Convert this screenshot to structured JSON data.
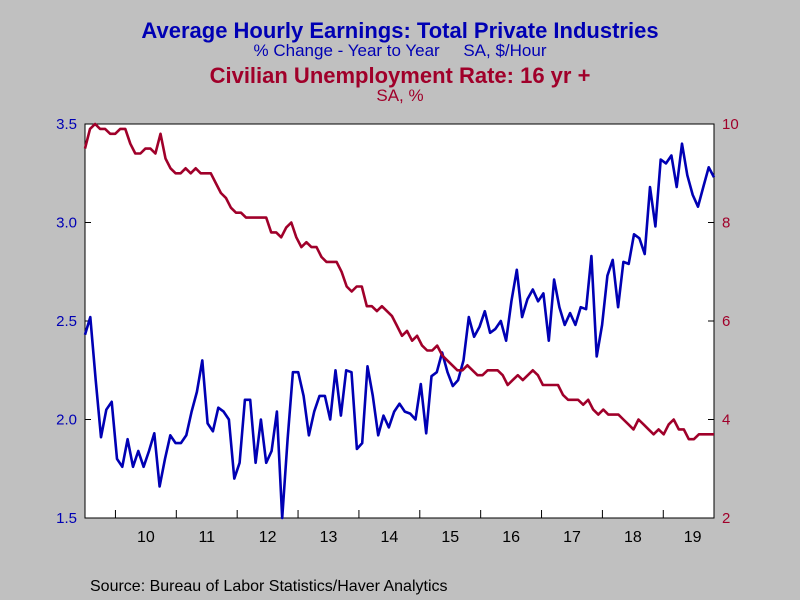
{
  "chart_data": {
    "type": "line",
    "title": "Average Hourly Earnings: Total Private Industries",
    "subtitle": "% Change - Year to Year     SA, $/Hour",
    "title2": "Civilian Unemployment Rate: 16 yr +",
    "subtitle2": "SA, %",
    "source": "Source:  Bureau of Labor Statistics/Haver Analytics",
    "x_tick_labels": [
      "10",
      "11",
      "12",
      "13",
      "14",
      "15",
      "16",
      "17",
      "18",
      "19"
    ],
    "x_start_year": 2009.5,
    "x_end_year": 2019.8333,
    "y_left": {
      "min": 1.5,
      "max": 3.5,
      "ticks": [
        "1.5",
        "2.0",
        "2.5",
        "3.0",
        "3.5"
      ],
      "color": "#0000b4"
    },
    "y_right": {
      "min": 2,
      "max": 10,
      "ticks": [
        "2",
        "4",
        "6",
        "8",
        "10"
      ],
      "color": "#a0002a"
    },
    "grid": false,
    "series": [
      {
        "name": "Average Hourly Earnings",
        "axis": "left",
        "color": "#0000b4",
        "values": [
          2.43,
          2.52,
          2.2,
          1.91,
          2.05,
          2.09,
          1.8,
          1.76,
          1.9,
          1.76,
          1.84,
          1.76,
          1.84,
          1.93,
          1.66,
          1.8,
          1.92,
          1.88,
          1.88,
          1.92,
          2.04,
          2.14,
          2.3,
          1.98,
          1.94,
          2.06,
          2.04,
          2.0,
          1.7,
          1.78,
          2.1,
          2.1,
          1.78,
          2.0,
          1.78,
          1.84,
          2.04,
          1.5,
          1.9,
          2.24,
          2.24,
          2.12,
          1.92,
          2.04,
          2.12,
          2.12,
          2.0,
          2.25,
          2.02,
          2.25,
          2.24,
          1.85,
          1.88,
          2.27,
          2.12,
          1.92,
          2.02,
          1.96,
          2.04,
          2.08,
          2.04,
          2.03,
          2.0,
          2.18,
          1.93,
          2.22,
          2.24,
          2.34,
          2.24,
          2.17,
          2.2,
          2.3,
          2.52,
          2.42,
          2.47,
          2.55,
          2.44,
          2.46,
          2.5,
          2.4,
          2.6,
          2.76,
          2.52,
          2.61,
          2.66,
          2.6,
          2.64,
          2.4,
          2.71,
          2.57,
          2.48,
          2.54,
          2.48,
          2.57,
          2.56,
          2.83,
          2.32,
          2.48,
          2.73,
          2.81,
          2.57,
          2.8,
          2.79,
          2.94,
          2.92,
          2.84,
          3.18,
          2.98,
          3.32,
          3.3,
          3.34,
          3.18,
          3.4,
          3.24,
          3.14,
          3.08,
          3.18,
          3.28,
          3.23
        ]
      },
      {
        "name": "Civilian Unemployment Rate",
        "axis": "right",
        "color": "#a0002a",
        "values": [
          9.5,
          9.9,
          10.0,
          9.9,
          9.9,
          9.8,
          9.8,
          9.9,
          9.9,
          9.6,
          9.4,
          9.4,
          9.5,
          9.5,
          9.4,
          9.8,
          9.3,
          9.1,
          9.0,
          9.0,
          9.1,
          9.0,
          9.1,
          9.0,
          9.0,
          9.0,
          8.8,
          8.6,
          8.5,
          8.3,
          8.2,
          8.2,
          8.1,
          8.1,
          8.1,
          8.1,
          8.1,
          7.8,
          7.8,
          7.7,
          7.9,
          8.0,
          7.7,
          7.5,
          7.6,
          7.5,
          7.5,
          7.3,
          7.2,
          7.2,
          7.2,
          7.0,
          6.7,
          6.6,
          6.7,
          6.7,
          6.3,
          6.3,
          6.2,
          6.3,
          6.2,
          6.1,
          5.9,
          5.7,
          5.8,
          5.6,
          5.7,
          5.5,
          5.4,
          5.4,
          5.5,
          5.3,
          5.2,
          5.1,
          5.0,
          5.0,
          5.1,
          5.0,
          4.9,
          4.9,
          5.0,
          5.0,
          5.0,
          4.9,
          4.7,
          4.8,
          4.9,
          4.8,
          4.9,
          5.0,
          4.9,
          4.7,
          4.7,
          4.7,
          4.7,
          4.5,
          4.4,
          4.4,
          4.4,
          4.3,
          4.4,
          4.2,
          4.1,
          4.2,
          4.1,
          4.1,
          4.1,
          4.0,
          3.9,
          3.8,
          4.0,
          3.9,
          3.8,
          3.7,
          3.8,
          3.7,
          3.9,
          4.0,
          3.8,
          3.8,
          3.6,
          3.6,
          3.7,
          3.7,
          3.7,
          3.7
        ]
      }
    ]
  }
}
